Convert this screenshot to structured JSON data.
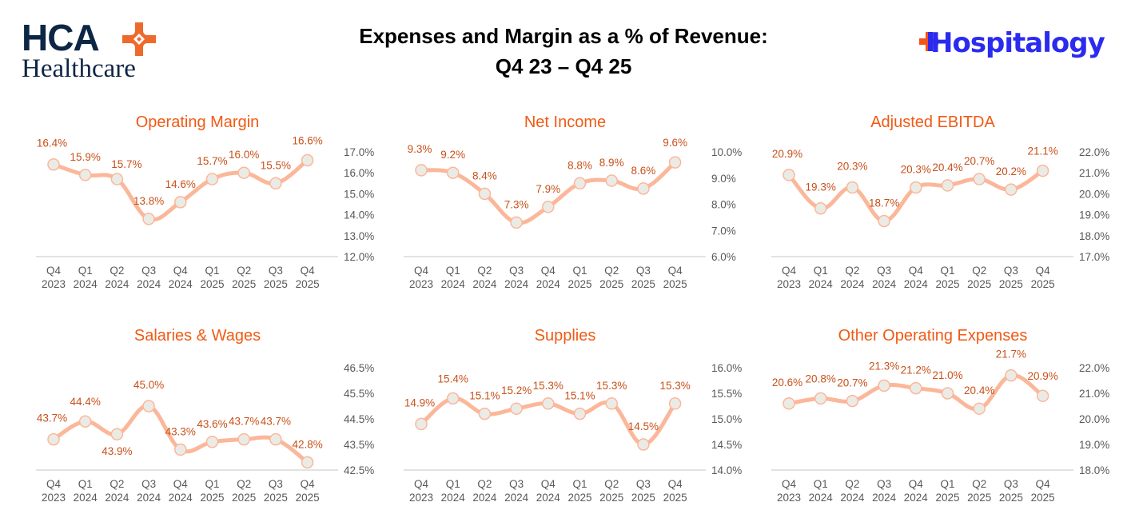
{
  "header": {
    "title_line1": "Expenses and Margin as a % of Revenue:",
    "title_line2": "Q4 23 – Q4 25",
    "left_logo": {
      "brand": "HCA",
      "subtitle": "Healthcare",
      "icon": "hca-cross-icon",
      "colors": {
        "text": "#0e2646",
        "accent": "#ee6a2c"
      }
    },
    "right_logo": {
      "brand": "Hospitalogy",
      "icon": "medical-plus-icon",
      "colors": {
        "text": "#2b2bf0",
        "accent": "#f2541b"
      }
    }
  },
  "colors": {
    "title": "#f05a14",
    "label": "#c8501a",
    "line": "#fbb79a",
    "marker_fill": "#ebebe6",
    "marker_stroke": "#fbb79a",
    "axis": "#d9d9d9",
    "tick": "#595959"
  },
  "chart_data": [
    {
      "type": "line",
      "title": "Operating Margin",
      "x": [
        "Q4 2023",
        "Q1 2024",
        "Q2 2024",
        "Q3 2024",
        "Q4 2024",
        "Q1 2025",
        "Q2 2025",
        "Q3 2025",
        "Q4 2025"
      ],
      "values": [
        16.4,
        15.9,
        15.7,
        13.8,
        14.6,
        15.7,
        16.0,
        15.5,
        16.6
      ],
      "labels": [
        "16.4%",
        "15.9%",
        "15.7%",
        "13.8%",
        "14.6%",
        "15.7%",
        "16.0%",
        "15.5%",
        "16.6%"
      ],
      "ylim": [
        12.0,
        17.0
      ],
      "yticks": [
        "17.0%",
        "16.0%",
        "15.0%",
        "14.0%",
        "13.0%",
        "12.0%"
      ],
      "ytick_values": [
        17,
        16,
        15,
        14,
        13,
        12
      ],
      "yaxis_position": "right",
      "grid": false,
      "legend": "none"
    },
    {
      "type": "line",
      "title": "Net Income",
      "x": [
        "Q4 2023",
        "Q1 2024",
        "Q2 2024",
        "Q3 2024",
        "Q4 2024",
        "Q1 2025",
        "Q2 2025",
        "Q3 2025",
        "Q4 2025"
      ],
      "values": [
        9.3,
        9.2,
        8.4,
        7.3,
        7.9,
        8.8,
        8.9,
        8.6,
        9.6
      ],
      "labels": [
        "9.3%",
        "9.2%",
        "8.4%",
        "7.3%",
        "7.9%",
        "8.8%",
        "8.9%",
        "8.6%",
        "9.6%"
      ],
      "ylim": [
        6.0,
        10.0
      ],
      "yticks": [
        "10.0%",
        "9.0%",
        "8.0%",
        "7.0%",
        "6.0%"
      ],
      "ytick_values": [
        10,
        9,
        8,
        7,
        6
      ],
      "yaxis_position": "right",
      "grid": false,
      "legend": "none"
    },
    {
      "type": "line",
      "title": "Adjusted EBITDA",
      "x": [
        "Q4 2023",
        "Q1 2024",
        "Q2 2024",
        "Q3 2024",
        "Q4 2024",
        "Q1 2025",
        "Q2 2025",
        "Q3 2025",
        "Q4 2025"
      ],
      "values": [
        20.9,
        19.3,
        20.3,
        18.7,
        20.3,
        20.4,
        20.7,
        20.2,
        21.1
      ],
      "labels": [
        "20.9%",
        "19.3%",
        "20.3%",
        "18.7%",
        "20.3%",
        "20.4%",
        "20.7%",
        "20.2%",
        "21.1%"
      ],
      "ylim": [
        17.0,
        22.0
      ],
      "yticks": [
        "22.0%",
        "21.0%",
        "20.0%",
        "19.0%",
        "18.0%",
        "17.0%"
      ],
      "ytick_values": [
        22,
        21,
        20,
        19,
        18,
        17
      ],
      "yaxis_position": "right",
      "grid": false,
      "legend": "none"
    },
    {
      "type": "line",
      "title": "Salaries & Wages",
      "x": [
        "Q4 2023",
        "Q1 2024",
        "Q2 2024",
        "Q3 2024",
        "Q4 2024",
        "Q1 2025",
        "Q2 2025",
        "Q3 2025",
        "Q4 2025"
      ],
      "values": [
        43.7,
        44.4,
        43.9,
        45.0,
        43.3,
        43.6,
        43.7,
        43.7,
        42.8
      ],
      "labels": [
        "43.7%",
        "44.4%",
        "43.9%",
        "45.0%",
        "43.3%",
        "43.6%",
        "43.7%",
        "43.7%",
        "42.8%"
      ],
      "ylim": [
        42.5,
        46.5
      ],
      "yticks": [
        "46.5%",
        "45.5%",
        "44.5%",
        "43.5%",
        "42.5%"
      ],
      "ytick_values": [
        46.5,
        45.5,
        44.5,
        43.5,
        42.5
      ],
      "yaxis_position": "right",
      "grid": false,
      "legend": "none"
    },
    {
      "type": "line",
      "title": "Supplies",
      "x": [
        "Q4 2023",
        "Q1 2024",
        "Q2 2024",
        "Q3 2024",
        "Q4 2024",
        "Q1 2025",
        "Q2 2025",
        "Q3 2025",
        "Q4 2025"
      ],
      "values": [
        14.9,
        15.4,
        15.1,
        15.2,
        15.3,
        15.1,
        15.3,
        14.5,
        15.3
      ],
      "labels": [
        "14.9%",
        "15.4%",
        "15.1%",
        "15.2%",
        "15.3%",
        "15.1%",
        "15.3%",
        "14.5%",
        "15.3%"
      ],
      "ylim": [
        14.0,
        16.0
      ],
      "yticks": [
        "16.0%",
        "15.5%",
        "15.0%",
        "14.5%",
        "14.0%"
      ],
      "ytick_values": [
        16,
        15.5,
        15,
        14.5,
        14
      ],
      "yaxis_position": "right",
      "grid": false,
      "legend": "none"
    },
    {
      "type": "line",
      "title": "Other Operating Expenses",
      "x": [
        "Q4 2023",
        "Q1 2024",
        "Q2 2024",
        "Q3 2024",
        "Q4 2024",
        "Q1 2025",
        "Q2 2025",
        "Q3 2025",
        "Q4 2025"
      ],
      "values": [
        20.6,
        20.8,
        20.7,
        21.3,
        21.2,
        21.0,
        20.4,
        21.7,
        20.9
      ],
      "labels": [
        "20.6%",
        "20.8%",
        "20.7%",
        "21.3%",
        "21.2%",
        "21.0%",
        "20.4%",
        "21.7%",
        "20.9%"
      ],
      "ylim": [
        18.0,
        22.0
      ],
      "yticks": [
        "22.0%",
        "21.0%",
        "20.0%",
        "19.0%",
        "18.0%"
      ],
      "ytick_values": [
        22,
        21,
        20,
        19,
        18
      ],
      "yaxis_position": "right",
      "grid": false,
      "legend": "none"
    }
  ]
}
